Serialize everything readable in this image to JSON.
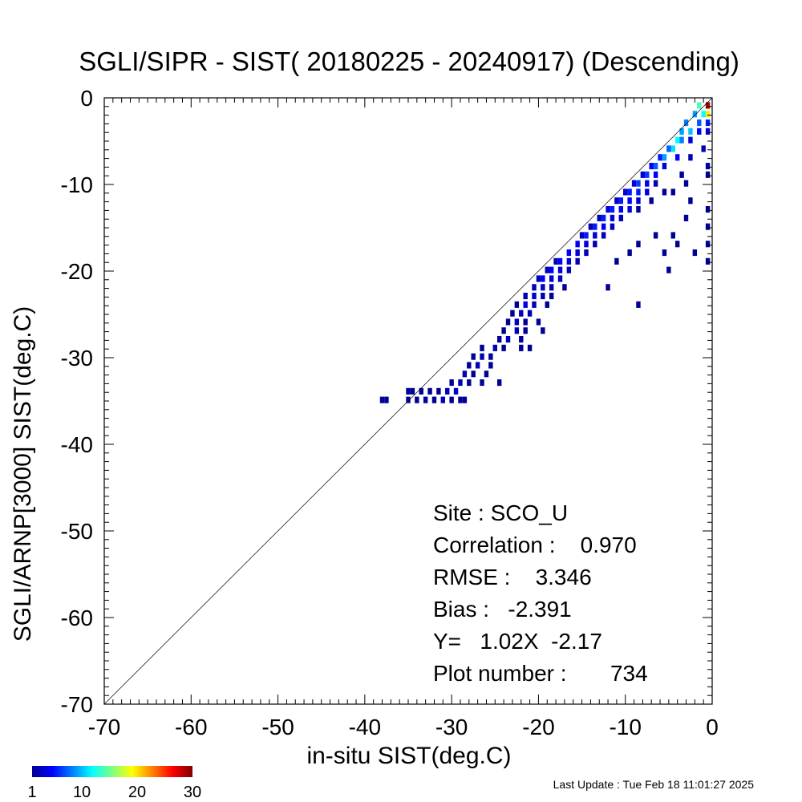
{
  "chart_data": {
    "type": "heatmap",
    "title": "SGLI/SIPR - SIST( 20180225 - 20240917) (Descending)",
    "xlabel": "in-situ SIST(deg.C)",
    "ylabel": "SGLI/ARNP[3000]     SIST(deg.C)",
    "xlim": [
      -70,
      0
    ],
    "ylim": [
      -70,
      0
    ],
    "x_ticks": [
      "-70",
      "-60",
      "-50",
      "-40",
      "-30",
      "-20",
      "-10",
      "0"
    ],
    "y_ticks": [
      "-70",
      "-60",
      "-50",
      "-40",
      "-30",
      "-20",
      "-10",
      "0"
    ],
    "reference_line": "y = x",
    "colorbar": {
      "min": 1,
      "max": 30,
      "tick_labels": [
        "1",
        "10",
        "20",
        "30"
      ],
      "tick_values": [
        1,
        10,
        20,
        30
      ],
      "colormap": "jet"
    },
    "stats": {
      "site": "Site : SCO_U",
      "correlation": "Correlation :    0.970",
      "rmse": "RMSE :    3.346",
      "bias": "Bias :   -2.391",
      "regression": "Y=   1.02X  -2.17",
      "plot_number": "Plot number :       734"
    },
    "cells": [
      [
        -0.5,
        -1,
        30
      ],
      [
        -0.5,
        -2,
        20
      ],
      [
        -1.5,
        -1,
        14
      ],
      [
        -1,
        -2,
        12
      ],
      [
        -2,
        -2,
        9
      ],
      [
        -1.5,
        -3,
        7
      ],
      [
        -0.5,
        -3,
        5
      ],
      [
        -3,
        -3,
        8
      ],
      [
        -2.5,
        -4,
        10
      ],
      [
        -3.5,
        -4,
        9
      ],
      [
        -4,
        -5,
        12
      ],
      [
        -3.5,
        -5,
        8
      ],
      [
        -1.5,
        -4,
        4
      ],
      [
        -0.5,
        -4,
        3
      ],
      [
        -4.5,
        -6,
        11
      ],
      [
        -5,
        -6,
        7
      ],
      [
        -2.5,
        -5,
        3
      ],
      [
        -5.5,
        -7,
        9
      ],
      [
        -4,
        -7,
        4
      ],
      [
        -6,
        -7,
        5
      ],
      [
        -1,
        -6,
        2
      ],
      [
        -6.5,
        -8,
        7
      ],
      [
        -5.5,
        -8,
        3
      ],
      [
        -7,
        -8,
        4
      ],
      [
        -2.5,
        -7,
        2
      ],
      [
        -0.5,
        -8,
        2
      ],
      [
        -7.5,
        -9,
        6
      ],
      [
        -6.5,
        -9,
        4
      ],
      [
        -8,
        -9,
        3
      ],
      [
        -3.5,
        -9,
        1
      ],
      [
        -0.5,
        -9,
        1
      ],
      [
        -8.5,
        -10,
        6
      ],
      [
        -7.5,
        -10,
        4
      ],
      [
        -6.5,
        -10,
        2
      ],
      [
        -9,
        -10,
        3
      ],
      [
        -3,
        -10,
        1
      ],
      [
        -9.5,
        -11,
        5
      ],
      [
        -8.5,
        -11,
        5
      ],
      [
        -7.5,
        -11,
        3
      ],
      [
        -10,
        -11,
        3
      ],
      [
        -5.5,
        -11,
        1
      ],
      [
        -4.5,
        -11,
        1
      ],
      [
        -10.5,
        -12,
        5
      ],
      [
        -9.5,
        -12,
        4
      ],
      [
        -8.5,
        -12,
        3
      ],
      [
        -11,
        -12,
        2
      ],
      [
        -7,
        -12,
        1
      ],
      [
        -11.5,
        -13,
        5
      ],
      [
        -10.5,
        -13,
        4
      ],
      [
        -9.5,
        -13,
        3
      ],
      [
        -12,
        -13,
        3
      ],
      [
        -8.5,
        -13,
        1
      ],
      [
        -0.5,
        -13,
        1
      ],
      [
        -12.5,
        -14,
        5
      ],
      [
        -11.5,
        -14,
        3
      ],
      [
        -10.5,
        -14,
        2
      ],
      [
        -13,
        -14,
        2
      ],
      [
        -3,
        -14,
        1
      ],
      [
        -13.5,
        -15,
        5
      ],
      [
        -12.5,
        -15,
        4
      ],
      [
        -11.5,
        -15,
        2
      ],
      [
        -14,
        -15,
        2
      ],
      [
        -0.5,
        -15,
        1
      ],
      [
        -14.5,
        -16,
        5
      ],
      [
        -13.5,
        -16,
        3
      ],
      [
        -12.5,
        -16,
        2
      ],
      [
        -15,
        -16,
        2
      ],
      [
        -15.5,
        -17,
        4
      ],
      [
        -14.5,
        -17,
        3
      ],
      [
        -13.5,
        -17,
        2
      ],
      [
        -8.5,
        -17,
        1
      ],
      [
        -4,
        -17,
        1
      ],
      [
        -0.5,
        -17,
        1
      ],
      [
        -16.5,
        -18,
        4
      ],
      [
        -15.5,
        -18,
        3
      ],
      [
        -14.5,
        -18,
        2
      ],
      [
        -9.5,
        -18,
        1
      ],
      [
        -5.5,
        -18,
        1
      ],
      [
        -2,
        -18,
        1
      ],
      [
        -17.5,
        -19,
        4
      ],
      [
        -16.5,
        -19,
        3
      ],
      [
        -15.5,
        -19,
        2
      ],
      [
        -18,
        -19,
        2
      ],
      [
        -11,
        -19,
        1
      ],
      [
        -0.5,
        -19,
        1
      ],
      [
        -18.5,
        -20,
        4
      ],
      [
        -17.5,
        -20,
        3
      ],
      [
        -16.5,
        -20,
        2
      ],
      [
        -19,
        -20,
        2
      ],
      [
        -5,
        -20,
        1
      ],
      [
        -19.5,
        -21,
        4
      ],
      [
        -18.5,
        -21,
        3
      ],
      [
        -17.5,
        -21,
        2
      ],
      [
        -20,
        -21,
        2
      ],
      [
        -19.5,
        -22,
        3
      ],
      [
        -18.5,
        -22,
        2
      ],
      [
        -17,
        -22,
        1
      ],
      [
        -20.5,
        -22,
        2
      ],
      [
        -12,
        -22,
        1
      ],
      [
        -20.5,
        -23,
        3
      ],
      [
        -19.5,
        -23,
        2
      ],
      [
        -21.5,
        -23,
        2
      ],
      [
        -18.5,
        -23,
        1
      ],
      [
        -8.5,
        -24,
        1
      ],
      [
        -21.5,
        -24,
        3
      ],
      [
        -20.5,
        -24,
        2
      ],
      [
        -22.5,
        -24,
        1
      ],
      [
        -19,
        -24,
        1
      ],
      [
        -22,
        -25,
        2
      ],
      [
        -21,
        -25,
        2
      ],
      [
        -23,
        -25,
        1
      ],
      [
        -22.5,
        -26,
        2
      ],
      [
        -21.5,
        -26,
        1
      ],
      [
        -20,
        -26,
        1
      ],
      [
        -23.5,
        -26,
        1
      ],
      [
        -22.5,
        -27,
        2
      ],
      [
        -21.5,
        -27,
        1
      ],
      [
        -19.5,
        -27,
        1
      ],
      [
        -24,
        -27,
        1
      ],
      [
        -23.5,
        -28,
        2
      ],
      [
        -24.5,
        -28,
        1
      ],
      [
        -22,
        -28,
        1
      ],
      [
        -25,
        -29,
        2
      ],
      [
        -24,
        -29,
        1
      ],
      [
        -26.5,
        -29,
        1
      ],
      [
        -22,
        -29,
        1
      ],
      [
        -21,
        -29,
        1
      ],
      [
        -26.5,
        -30,
        2
      ],
      [
        -27.5,
        -30,
        1
      ],
      [
        -25.5,
        -30,
        1
      ],
      [
        -27,
        -31,
        2
      ],
      [
        -28,
        -31,
        1
      ],
      [
        -25.5,
        -31,
        1
      ],
      [
        -28.5,
        -32,
        2
      ],
      [
        -27.5,
        -32,
        1
      ],
      [
        -26,
        -32,
        1
      ],
      [
        -29,
        -33,
        2
      ],
      [
        -30,
        -33,
        1
      ],
      [
        -28,
        -33,
        1
      ],
      [
        -26.5,
        -33,
        1
      ],
      [
        -24.5,
        -33,
        1
      ],
      [
        -29.5,
        -34,
        3
      ],
      [
        -30.5,
        -34,
        2
      ],
      [
        -31.5,
        -34,
        1
      ],
      [
        -32.5,
        -34,
        1
      ],
      [
        -33.5,
        -34,
        1
      ],
      [
        -34.5,
        -34,
        1
      ],
      [
        -35,
        -34,
        1
      ],
      [
        -29,
        -35,
        1
      ],
      [
        -30,
        -35,
        1
      ],
      [
        -31,
        -35,
        2
      ],
      [
        -32,
        -35,
        1
      ],
      [
        -33,
        -35,
        1
      ],
      [
        -34,
        -35,
        1
      ],
      [
        -35,
        -35,
        1
      ],
      [
        -37.5,
        -35,
        1
      ],
      [
        -38,
        -35,
        1
      ],
      [
        -28.5,
        -35,
        1
      ],
      [
        -2.5,
        -12,
        1
      ],
      [
        -4.5,
        -16,
        1
      ],
      [
        -6.5,
        -16,
        1
      ]
    ]
  },
  "footer": {
    "last_update": "Last Update : Tue Feb 18 11:01:27 2025"
  }
}
